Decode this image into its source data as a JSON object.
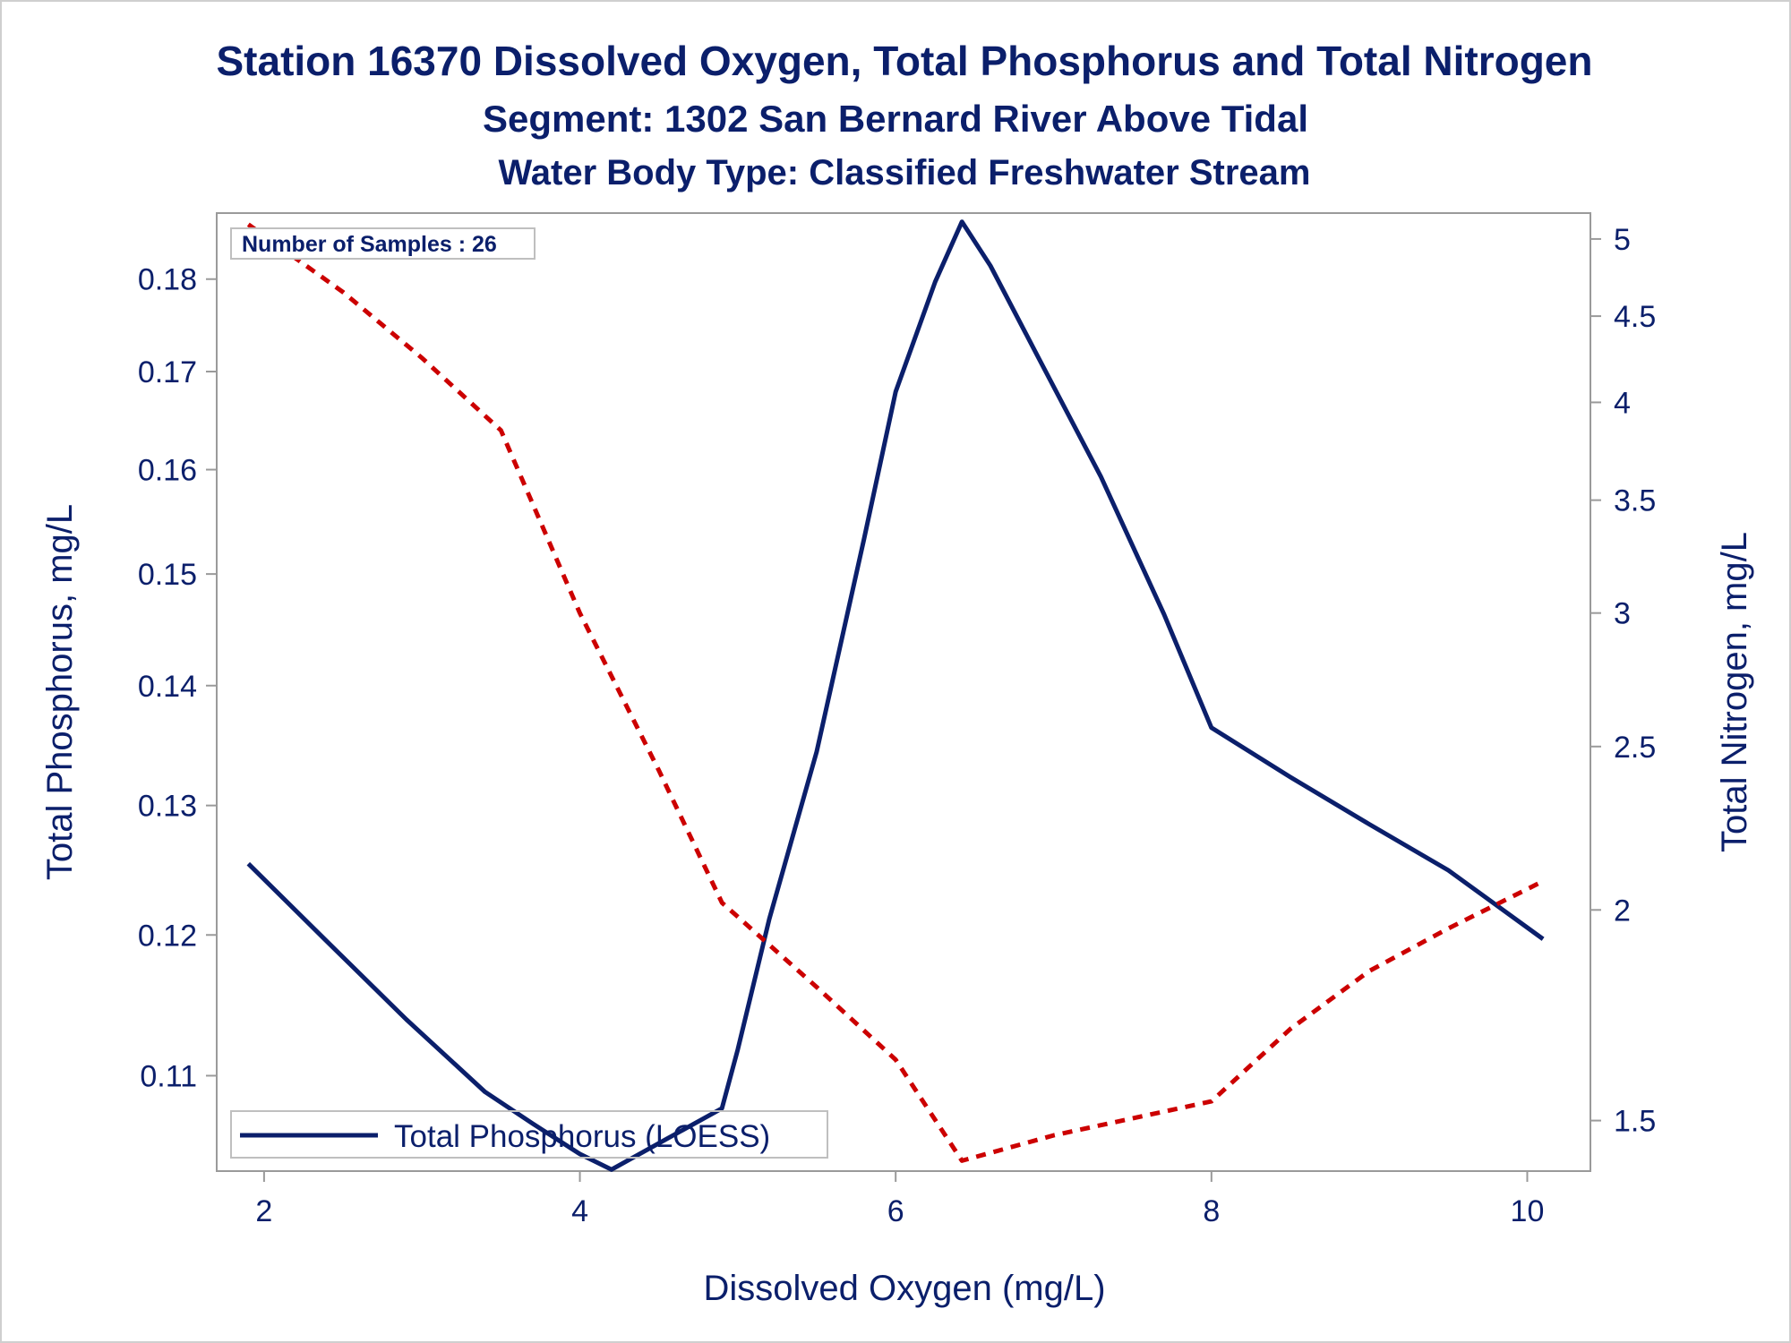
{
  "titles": {
    "line1": "Station 16370  Dissolved Oxygen, Total Phosphorus and Total Nitrogen",
    "line2": "Segment: 1302  San Bernard River Above Tidal",
    "line3": "Water Body Type: Classified Freshwater Stream"
  },
  "inset": {
    "samples_label": "Number of Samples : 26"
  },
  "legend": {
    "label": "Total Phosphorus (LOESS)"
  },
  "colors": {
    "text": "#0b1f6b",
    "phosphorus_line": "#0b1f6b",
    "nitrogen_line": "#cc0000",
    "frame": "#9a9a9a",
    "outer_border": "#cfcfcf"
  },
  "chart_data": {
    "type": "line",
    "xlabel": "Dissolved Oxygen (mg/L)",
    "ylabel": "Total Phosphorus, mg/L",
    "y2label": "Total Nitrogen, mg/L",
    "xlim": [
      1.7,
      10.4
    ],
    "ylim": [
      0.1037,
      0.1875
    ],
    "y2lim": [
      1.4,
      5.18
    ],
    "y_scale": "log",
    "y2_scale": "log",
    "x_ticks": [
      2,
      4,
      6,
      8,
      10
    ],
    "x_tick_labels": [
      "2",
      "4",
      "6",
      "8",
      "10"
    ],
    "y_ticks": [
      0.11,
      0.12,
      0.13,
      0.14,
      0.15,
      0.16,
      0.17,
      0.18
    ],
    "y_tick_labels": [
      "0.11",
      "0.12",
      "0.13",
      "0.14",
      "0.15",
      "0.16",
      "0.17",
      "0.18"
    ],
    "y2_ticks": [
      1.5,
      2,
      2.5,
      3,
      3.5,
      4,
      4.5,
      5
    ],
    "y2_tick_labels": [
      "1.5",
      "2",
      "2.5",
      "3",
      "3.5",
      "4",
      "4.5",
      "5"
    ],
    "grid": false,
    "legend_position": "bottom-left",
    "series": [
      {
        "name": "Total Phosphorus (LOESS)",
        "axis": "left",
        "style": "solid",
        "x": [
          1.9,
          2.4,
          2.9,
          3.4,
          3.7,
          4.0,
          4.2,
          4.5,
          4.9,
          5.0,
          5.2,
          5.5,
          5.8,
          6.0,
          6.25,
          6.42,
          6.6,
          6.9,
          7.3,
          7.7,
          8.0,
          8.5,
          9.0,
          9.5,
          10.1
        ],
        "values": [
          0.1254,
          0.1195,
          0.1139,
          0.1089,
          0.1068,
          0.1048,
          0.1038,
          0.1055,
          0.1078,
          0.1118,
          0.1212,
          0.1344,
          0.1533,
          0.1679,
          0.1797,
          0.1865,
          0.1815,
          0.1716,
          0.1593,
          0.1463,
          0.1364,
          0.1323,
          0.1285,
          0.1249,
          0.1197
        ]
      },
      {
        "name": "",
        "axis": "right",
        "style": "dashed",
        "x": [
          1.9,
          2.5,
          3.0,
          3.5,
          4.0,
          4.5,
          4.9,
          5.5,
          6.0,
          6.42,
          7.0,
          8.0,
          8.5,
          9.0,
          9.5,
          10.1
        ],
        "values": [
          5.1,
          4.65,
          4.25,
          3.85,
          3.0,
          2.42,
          2.02,
          1.8,
          1.63,
          1.42,
          1.47,
          1.54,
          1.7,
          1.84,
          1.95,
          2.08
        ]
      }
    ]
  }
}
